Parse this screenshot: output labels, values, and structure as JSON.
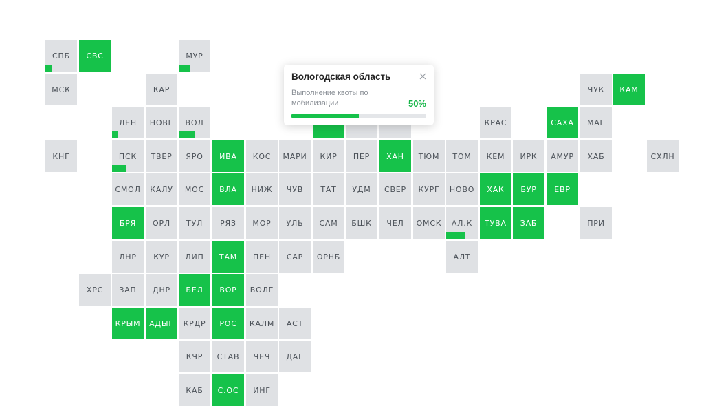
{
  "colors": {
    "tile": "#dfe1e4",
    "accent": "#16c24a",
    "text": "#4c5259",
    "text_on_accent": "#ffffff"
  },
  "regions": [
    {
      "code": "СПБ",
      "col": 0,
      "row": 0,
      "fill": 0.2
    },
    {
      "code": "СВС",
      "col": 1,
      "row": 0,
      "fill": 1
    },
    {
      "code": "МУР",
      "col": 4,
      "row": 0,
      "fill": 0.35
    },
    {
      "code": "МСК",
      "col": 0,
      "row": 1,
      "fill": 0
    },
    {
      "code": "КАР",
      "col": 3,
      "row": 1,
      "fill": 0
    },
    {
      "code": "ЧУК",
      "col": 16,
      "row": 1,
      "fill": 0
    },
    {
      "code": "КАМ",
      "col": 17,
      "row": 1,
      "fill": 1
    },
    {
      "code": "ЛЕН",
      "col": 2,
      "row": 2,
      "fill": 0.2
    },
    {
      "code": "НОВГ",
      "col": 3,
      "row": 2,
      "fill": 0
    },
    {
      "code": "ВОЛ",
      "col": 4,
      "row": 2,
      "fill": 0.5
    },
    {
      "code": "",
      "col": 8,
      "row": 2,
      "fill": 1
    },
    {
      "code": "",
      "col": 9,
      "row": 2,
      "fill": 0
    },
    {
      "code": "",
      "col": 10,
      "row": 2,
      "fill": 0
    },
    {
      "code": "КРАС",
      "col": 13,
      "row": 2,
      "fill": 0
    },
    {
      "code": "САХА",
      "col": 15,
      "row": 2,
      "fill": 1
    },
    {
      "code": "МАГ",
      "col": 16,
      "row": 2,
      "fill": 0
    },
    {
      "code": "КНГ",
      "col": 0,
      "row": 3,
      "fill": 0
    },
    {
      "code": "ПСК",
      "col": 2,
      "row": 3,
      "fill": 0.45
    },
    {
      "code": "ТВЕР",
      "col": 3,
      "row": 3,
      "fill": 0
    },
    {
      "code": "ЯРО",
      "col": 4,
      "row": 3,
      "fill": 0
    },
    {
      "code": "ИВА",
      "col": 5,
      "row": 3,
      "fill": 1
    },
    {
      "code": "КОС",
      "col": 6,
      "row": 3,
      "fill": 0
    },
    {
      "code": "МАРИ",
      "col": 7,
      "row": 3,
      "fill": 0
    },
    {
      "code": "КИР",
      "col": 8,
      "row": 3,
      "fill": 0
    },
    {
      "code": "ПЕР",
      "col": 9,
      "row": 3,
      "fill": 0
    },
    {
      "code": "ХАН",
      "col": 10,
      "row": 3,
      "fill": 1
    },
    {
      "code": "ТЮМ",
      "col": 11,
      "row": 3,
      "fill": 0
    },
    {
      "code": "ТОМ",
      "col": 12,
      "row": 3,
      "fill": 0
    },
    {
      "code": "КЕМ",
      "col": 13,
      "row": 3,
      "fill": 0
    },
    {
      "code": "ИРК",
      "col": 14,
      "row": 3,
      "fill": 0
    },
    {
      "code": "АМУР",
      "col": 15,
      "row": 3,
      "fill": 0
    },
    {
      "code": "ХАБ",
      "col": 16,
      "row": 3,
      "fill": 0
    },
    {
      "code": "СХЛН",
      "col": 18,
      "row": 3,
      "fill": 0
    },
    {
      "code": "СМОЛ",
      "col": 2,
      "row": 4,
      "fill": 0
    },
    {
      "code": "КАЛУ",
      "col": 3,
      "row": 4,
      "fill": 0
    },
    {
      "code": "МОС",
      "col": 4,
      "row": 4,
      "fill": 0
    },
    {
      "code": "ВЛА",
      "col": 5,
      "row": 4,
      "fill": 1
    },
    {
      "code": "НИЖ",
      "col": 6,
      "row": 4,
      "fill": 0
    },
    {
      "code": "ЧУВ",
      "col": 7,
      "row": 4,
      "fill": 0
    },
    {
      "code": "ТАТ",
      "col": 8,
      "row": 4,
      "fill": 0
    },
    {
      "code": "УДМ",
      "col": 9,
      "row": 4,
      "fill": 0
    },
    {
      "code": "СВЕР",
      "col": 10,
      "row": 4,
      "fill": 0
    },
    {
      "code": "КУРГ",
      "col": 11,
      "row": 4,
      "fill": 0
    },
    {
      "code": "НОВО",
      "col": 12,
      "row": 4,
      "fill": 0
    },
    {
      "code": "ХАК",
      "col": 13,
      "row": 4,
      "fill": 1
    },
    {
      "code": "БУР",
      "col": 14,
      "row": 4,
      "fill": 1
    },
    {
      "code": "ЕВР",
      "col": 15,
      "row": 4,
      "fill": 1
    },
    {
      "code": "БРЯ",
      "col": 2,
      "row": 5,
      "fill": 1
    },
    {
      "code": "ОРЛ",
      "col": 3,
      "row": 5,
      "fill": 0
    },
    {
      "code": "ТУЛ",
      "col": 4,
      "row": 5,
      "fill": 0
    },
    {
      "code": "РЯЗ",
      "col": 5,
      "row": 5,
      "fill": 0
    },
    {
      "code": "МОР",
      "col": 6,
      "row": 5,
      "fill": 0
    },
    {
      "code": "УЛЬ",
      "col": 7,
      "row": 5,
      "fill": 0
    },
    {
      "code": "САМ",
      "col": 8,
      "row": 5,
      "fill": 0
    },
    {
      "code": "БШК",
      "col": 9,
      "row": 5,
      "fill": 0
    },
    {
      "code": "ЧЕЛ",
      "col": 10,
      "row": 5,
      "fill": 0
    },
    {
      "code": "ОМСК",
      "col": 11,
      "row": 5,
      "fill": 0
    },
    {
      "code": "АЛ.К",
      "col": 12,
      "row": 5,
      "fill": 0.6
    },
    {
      "code": "ТУВА",
      "col": 13,
      "row": 5,
      "fill": 1
    },
    {
      "code": "ЗАБ",
      "col": 14,
      "row": 5,
      "fill": 1
    },
    {
      "code": "ПРИ",
      "col": 16,
      "row": 5,
      "fill": 0
    },
    {
      "code": "ЛНР",
      "col": 2,
      "row": 6,
      "fill": 0
    },
    {
      "code": "КУР",
      "col": 3,
      "row": 6,
      "fill": 0
    },
    {
      "code": "ЛИП",
      "col": 4,
      "row": 6,
      "fill": 0
    },
    {
      "code": "ТАМ",
      "col": 5,
      "row": 6,
      "fill": 1
    },
    {
      "code": "ПЕН",
      "col": 6,
      "row": 6,
      "fill": 0
    },
    {
      "code": "САР",
      "col": 7,
      "row": 6,
      "fill": 0
    },
    {
      "code": "ОРНБ",
      "col": 8,
      "row": 6,
      "fill": 0
    },
    {
      "code": "АЛТ",
      "col": 12,
      "row": 6,
      "fill": 0
    },
    {
      "code": "ХРС",
      "col": 1,
      "row": 7,
      "fill": 0
    },
    {
      "code": "ЗАП",
      "col": 2,
      "row": 7,
      "fill": 0
    },
    {
      "code": "ДНР",
      "col": 3,
      "row": 7,
      "fill": 0
    },
    {
      "code": "БЕЛ",
      "col": 4,
      "row": 7,
      "fill": 1
    },
    {
      "code": "ВОР",
      "col": 5,
      "row": 7,
      "fill": 1
    },
    {
      "code": "ВОЛГ",
      "col": 6,
      "row": 7,
      "fill": 0
    },
    {
      "code": "КРЫМ",
      "col": 2,
      "row": 8,
      "fill": 1
    },
    {
      "code": "АДЫГ",
      "col": 3,
      "row": 8,
      "fill": 1
    },
    {
      "code": "КРДР",
      "col": 4,
      "row": 8,
      "fill": 0
    },
    {
      "code": "РОС",
      "col": 5,
      "row": 8,
      "fill": 1
    },
    {
      "code": "КАЛМ",
      "col": 6,
      "row": 8,
      "fill": 0
    },
    {
      "code": "АСТ",
      "col": 7,
      "row": 8,
      "fill": 0
    },
    {
      "code": "КЧР",
      "col": 4,
      "row": 9,
      "fill": 0
    },
    {
      "code": "СТАВ",
      "col": 5,
      "row": 9,
      "fill": 0
    },
    {
      "code": "ЧЕЧ",
      "col": 6,
      "row": 9,
      "fill": 0
    },
    {
      "code": "ДАГ",
      "col": 7,
      "row": 9,
      "fill": 0
    },
    {
      "code": "КАБ",
      "col": 4,
      "row": 10,
      "fill": 0
    },
    {
      "code": "С.ОС",
      "col": 5,
      "row": 10,
      "fill": 1
    },
    {
      "code": "ИНГ",
      "col": 6,
      "row": 10,
      "fill": 0
    }
  ],
  "popup": {
    "title": "Вологодская область",
    "subtitle": "Выполнение квоты по мобилизации",
    "percent_label": "50%",
    "progress": 0.5,
    "close_icon": "close-icon"
  }
}
